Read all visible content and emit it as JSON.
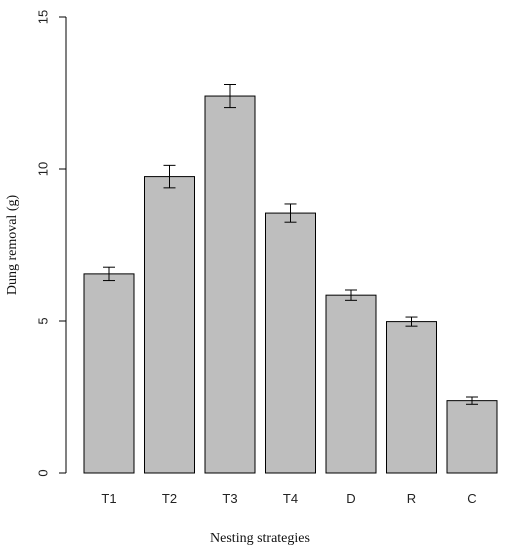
{
  "chart_data": {
    "type": "bar",
    "categories": [
      "T1",
      "T2",
      "T3",
      "T4",
      "D",
      "R",
      "C"
    ],
    "values": [
      6.55,
      9.75,
      12.4,
      8.55,
      5.85,
      4.98,
      2.38
    ],
    "errors": [
      0.22,
      0.37,
      0.38,
      0.3,
      0.17,
      0.15,
      0.12
    ],
    "xlabel": "Nesting strategies",
    "ylabel": "Dung removal (g)",
    "ylim": [
      0,
      15
    ],
    "yticks": [
      0,
      5,
      10,
      15
    ],
    "bar_color": "#bebebe",
    "grid": false
  }
}
